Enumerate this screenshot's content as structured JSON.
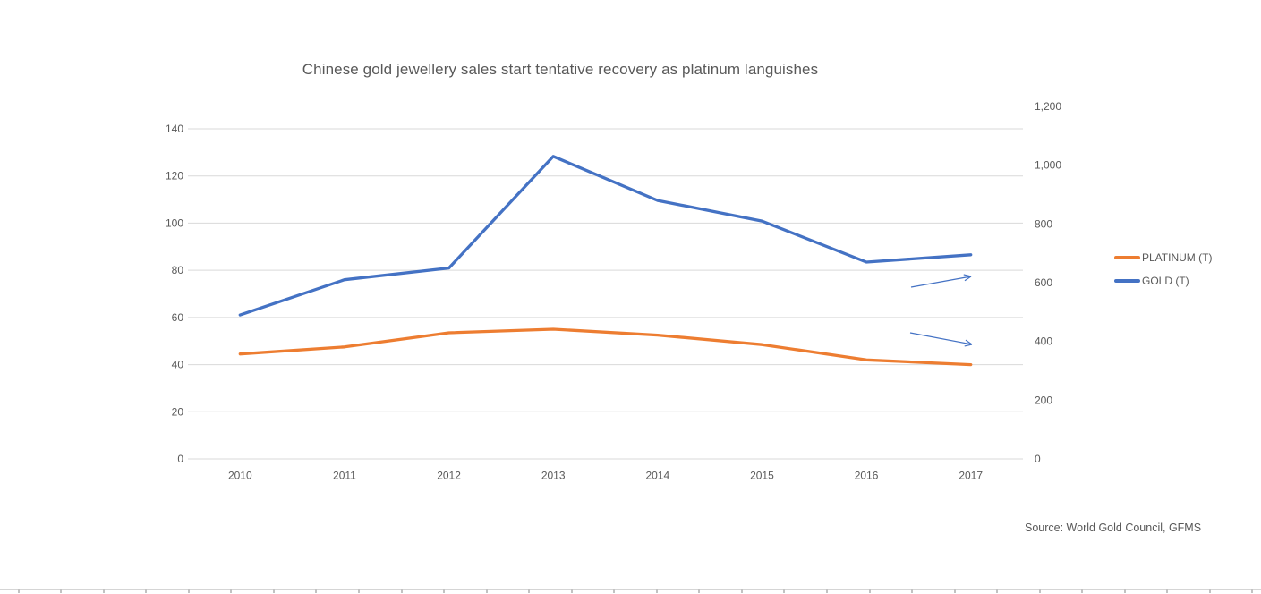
{
  "chart": {
    "title": "Chinese gold jewellery sales start tentative recovery as platinum languishes",
    "source": "Source: World Gold Council, GFMS",
    "legend": {
      "position": "right",
      "items": [
        {
          "label": "PLATINUM (T)",
          "color": "#ED7D31"
        },
        {
          "label": "GOLD (T)",
          "color": "#4472C4"
        }
      ]
    }
  },
  "colors": {
    "platinum_line": "#ED7D31",
    "gold_line": "#4472C4",
    "gridline": "#D9D9D9",
    "axis_text": "#595959",
    "title_text": "#595959",
    "annotation_arrow": "#4472C4",
    "worksheet_line": "#D5D5D5",
    "worksheet_tick": "#C2C2C2"
  },
  "chart_data": {
    "type": "line",
    "title": "Chinese gold jewellery sales start tentative recovery as platinum languishes",
    "categories": [
      "2010",
      "2011",
      "2012",
      "2013",
      "2014",
      "2015",
      "2016",
      "2017"
    ],
    "series": [
      {
        "name": "PLATINUM (T)",
        "axis": "left",
        "color": "#ED7D31",
        "values": [
          44.5,
          47.5,
          53.5,
          55,
          52.5,
          48.5,
          42,
          40
        ]
      },
      {
        "name": "GOLD (T)",
        "axis": "right",
        "color": "#4472C4",
        "values": [
          490,
          610,
          650,
          1030,
          880,
          810,
          670,
          695
        ]
      }
    ],
    "left_axis": {
      "min": 0,
      "max": 140,
      "tick_step": 20,
      "tick_labels": [
        "0",
        "20",
        "40",
        "60",
        "80",
        "100",
        "120",
        "140"
      ]
    },
    "right_axis": {
      "min": 0,
      "max": 1200,
      "tick_step": 200,
      "tick_labels": [
        "0",
        "200",
        "400",
        "600",
        "800",
        "1,000",
        "1,200"
      ]
    },
    "grid": "horizontal-only",
    "legend_position": "right",
    "annotations": [
      {
        "type": "arrow",
        "meaning": "points-to-right-axis",
        "color": "#4472C4",
        "from": [
          1018,
          321
        ],
        "to": [
          1085,
          309
        ]
      },
      {
        "type": "arrow",
        "meaning": "points-to-right-axis",
        "color": "#4472C4",
        "from": [
          1017,
          372
        ],
        "to": [
          1086,
          385
        ]
      }
    ]
  }
}
